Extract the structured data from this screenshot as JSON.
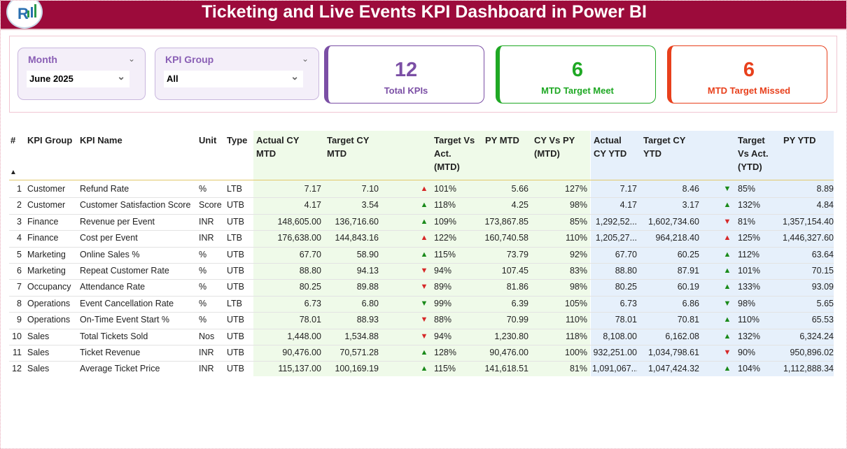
{
  "header": {
    "title": "Ticketing and Live Events KPI Dashboard in Power BI"
  },
  "filters": [
    {
      "label": "Month",
      "value": "June 2025"
    },
    {
      "label": "KPI Group",
      "value": "All"
    }
  ],
  "cards": [
    {
      "value": 12,
      "label": "Total KPIs",
      "color": "#7b4fa5"
    },
    {
      "value": 6,
      "label": "MTD Target Meet",
      "color": "#1fa824"
    },
    {
      "value": 6,
      "label": "MTD Target Missed",
      "color": "#e8401c"
    }
  ],
  "table": {
    "columns": [
      "#",
      "KPI Group",
      "KPI Name",
      "Unit",
      "Type",
      "Actual CY MTD",
      "Target CY MTD",
      "Target Vs Act. (MTD)",
      "PY MTD",
      "CY Vs PY (MTD)",
      "Actual CY YTD",
      "Target CY YTD",
      "Target Vs Act. (YTD)",
      "PY YTD"
    ],
    "rows": [
      [
        "1",
        "Customer",
        "Refund Rate",
        "%",
        "LTB",
        "7.17",
        "7.10",
        "▲",
        "101%",
        "5.66",
        "127%",
        "7.17",
        "8.46",
        "▼",
        "85%",
        "8.89"
      ],
      [
        "2",
        "Customer",
        "Customer Satisfaction Score",
        "Score",
        "UTB",
        "4.17",
        "3.54",
        "▲",
        "118%",
        "4.25",
        "98%",
        "4.17",
        "3.17",
        "▲",
        "132%",
        "4.84"
      ],
      [
        "3",
        "Finance",
        "Revenue per Event",
        "INR",
        "UTB",
        "148,605.00",
        "136,716.60",
        "▲",
        "109%",
        "173,867.85",
        "85%",
        "1,292,52...",
        "1,602,734.60",
        "▼",
        "81%",
        "1,357,154.40"
      ],
      [
        "4",
        "Finance",
        "Cost per Event",
        "INR",
        "LTB",
        "176,638.00",
        "144,843.16",
        "▲",
        "122%",
        "160,740.58",
        "110%",
        "1,205,27...",
        "964,218.40",
        "▲",
        "125%",
        "1,446,327.60"
      ],
      [
        "5",
        "Marketing",
        "Online Sales %",
        "%",
        "UTB",
        "67.70",
        "58.90",
        "▲",
        "115%",
        "73.79",
        "92%",
        "67.70",
        "60.25",
        "▲",
        "112%",
        "63.64"
      ],
      [
        "6",
        "Marketing",
        "Repeat Customer Rate",
        "%",
        "UTB",
        "88.80",
        "94.13",
        "▼",
        "94%",
        "107.45",
        "83%",
        "88.80",
        "87.91",
        "▲",
        "101%",
        "70.15"
      ],
      [
        "7",
        "Occupancy",
        "Attendance Rate",
        "%",
        "UTB",
        "80.25",
        "89.88",
        "▼",
        "89%",
        "81.86",
        "98%",
        "80.25",
        "60.19",
        "▲",
        "133%",
        "93.09"
      ],
      [
        "8",
        "Operations",
        "Event Cancellation Rate",
        "%",
        "LTB",
        "6.73",
        "6.80",
        "▼",
        "99%",
        "6.39",
        "105%",
        "6.73",
        "6.86",
        "▼",
        "98%",
        "5.65"
      ],
      [
        "9",
        "Operations",
        "On-Time Event Start %",
        "%",
        "UTB",
        "78.01",
        "88.93",
        "▼",
        "88%",
        "70.99",
        "110%",
        "78.01",
        "70.81",
        "▲",
        "110%",
        "65.53"
      ],
      [
        "10",
        "Sales",
        "Total Tickets Sold",
        "Nos",
        "UTB",
        "1,448.00",
        "1,534.88",
        "▼",
        "94%",
        "1,230.80",
        "118%",
        "8,108.00",
        "6,162.08",
        "▲",
        "132%",
        "6,324.24"
      ],
      [
        "11",
        "Sales",
        "Ticket Revenue",
        "INR",
        "UTB",
        "90,476.00",
        "70,571.28",
        "▲",
        "128%",
        "90,476.00",
        "100%",
        "932,251.00",
        "1,034,798.61",
        "▼",
        "90%",
        "950,896.02"
      ],
      [
        "12",
        "Sales",
        "Average Ticket Price",
        "INR",
        "UTB",
        "115,137.00",
        "100,169.19",
        "▲",
        "115%",
        "141,618.51",
        "81%",
        "1,091,067...",
        "1,047,424.32",
        "▲",
        "104%",
        "1,112,888.34"
      ]
    ],
    "arrow_colors": [
      [
        "#d62828",
        "#1a8a1a"
      ],
      [
        "#1a8a1a",
        "#1a8a1a"
      ],
      [
        "#1a8a1a",
        "#d62828"
      ],
      [
        "#d62828",
        "#d62828"
      ],
      [
        "#1a8a1a",
        "#1a8a1a"
      ],
      [
        "#d62828",
        "#1a8a1a"
      ],
      [
        "#d62828",
        "#1a8a1a"
      ],
      [
        "#1a8a1a",
        "#1a8a1a"
      ],
      [
        "#d62828",
        "#1a8a1a"
      ],
      [
        "#d62828",
        "#1a8a1a"
      ],
      [
        "#1a8a1a",
        "#d62828"
      ],
      [
        "#1a8a1a",
        "#1a8a1a"
      ]
    ]
  }
}
